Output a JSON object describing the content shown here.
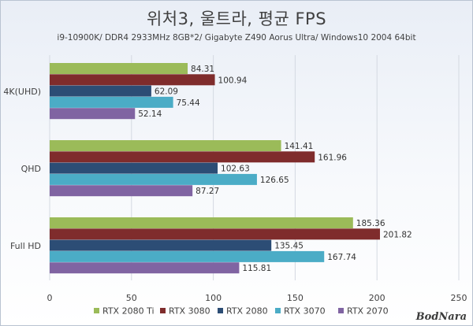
{
  "chart_data": {
    "type": "bar",
    "orientation": "horizontal",
    "title": "위처3, 울트라, 평균 FPS",
    "subtitle": "i9-10900K/ DDR4 2933MHz 8GB*2/ Gigabyte Z490 Aorus Ultra/ Windows10 2004 64bit",
    "categories": [
      "4K(UHD)",
      "QHD",
      "Full HD"
    ],
    "series": [
      {
        "name": "RTX 2080 Ti",
        "color": "#9bbb59",
        "values": [
          84.31,
          141.41,
          185.36
        ]
      },
      {
        "name": "RTX 3080",
        "color": "#7f2c2c",
        "values": [
          100.94,
          161.96,
          201.82
        ]
      },
      {
        "name": "RTX 2080",
        "color": "#2c4d75",
        "values": [
          62.09,
          102.63,
          135.45
        ]
      },
      {
        "name": "RTX 3070",
        "color": "#4bacc6",
        "values": [
          75.44,
          126.65,
          167.74
        ]
      },
      {
        "name": "RTX 2070",
        "color": "#8064a2",
        "values": [
          52.14,
          87.27,
          115.81
        ]
      }
    ],
    "xlim": [
      0,
      250
    ],
    "xticks": [
      0,
      50,
      100,
      150,
      200,
      250
    ],
    "xticklabels": [
      "0",
      "50",
      "100",
      "150",
      "200",
      "250"
    ],
    "grid": true,
    "legend": "bottom"
  },
  "logo": "BodNara"
}
